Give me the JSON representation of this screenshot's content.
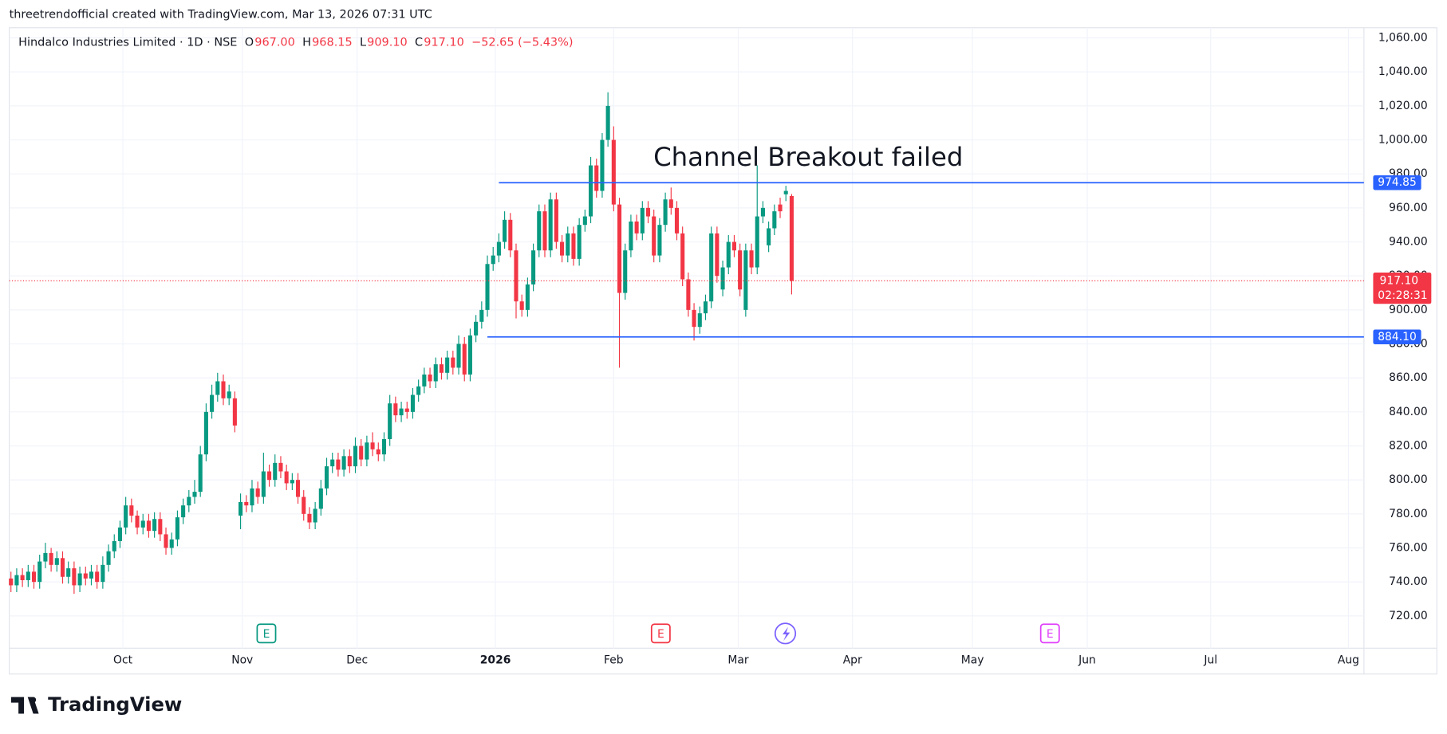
{
  "header": {
    "credit": "threetrendofficial created with TradingView.com, Mar 13, 2026 07:31 UTC"
  },
  "chart_data": {
    "type": "candlestick",
    "legend": {
      "symbol": "Hindalco Industries Limited · 1D · NSE",
      "items": [
        {
          "key": "O",
          "value": "967.00"
        },
        {
          "key": "H",
          "value": "968.15"
        },
        {
          "key": "L",
          "value": "909.10"
        },
        {
          "key": "C",
          "value": "917.10"
        }
      ],
      "change": "−52.65 (−5.43%)"
    },
    "annotation": "Channel Breakout failed",
    "colors": {
      "up": "#089981",
      "down": "#f23645",
      "level": "#2962ff",
      "last": "#f23645"
    },
    "grid": true,
    "candles": {
      "open": [
        742,
        738,
        744,
        741,
        746,
        740,
        752,
        757,
        750,
        754,
        743,
        748,
        738,
        745,
        742,
        746,
        740,
        750,
        758,
        764,
        772,
        785,
        779,
        772,
        776,
        770,
        777,
        768,
        760,
        765,
        778,
        785,
        790,
        793,
        815,
        840,
        850,
        858,
        848,
        848,
        779,
        787,
        785,
        795,
        790,
        805,
        800,
        810,
        805,
        798,
        800,
        790,
        780,
        775,
        783,
        795,
        808,
        812,
        806,
        814,
        808,
        820,
        812,
        822,
        818,
        815,
        824,
        845,
        838,
        842,
        840,
        850,
        855,
        862,
        858,
        868,
        863,
        872,
        866,
        880,
        862,
        885,
        893,
        900,
        927,
        932,
        940,
        953,
        935,
        905,
        900,
        915,
        935,
        958,
        935,
        965,
        940,
        932,
        945,
        930,
        950,
        955,
        985,
        970,
        1000,
        1000,
        962,
        910,
        935,
        952,
        945,
        960,
        955,
        932,
        950,
        965,
        960,
        945,
        918,
        900,
        890,
        898,
        905,
        945,
        912,
        925,
        940,
        935,
        900,
        935,
        925,
        955,
        938,
        948,
        962,
        968,
        967
      ],
      "high": [
        746,
        748,
        748,
        750,
        750,
        756,
        763,
        760,
        758,
        758,
        752,
        752,
        749,
        749,
        750,
        750,
        755,
        762,
        768,
        776,
        790,
        789,
        782,
        780,
        780,
        781,
        781,
        772,
        769,
        782,
        789,
        794,
        800,
        820,
        845,
        856,
        863,
        862,
        856,
        852,
        792,
        791,
        800,
        799,
        816,
        809,
        815,
        814,
        809,
        804,
        804,
        794,
        784,
        787,
        800,
        813,
        816,
        816,
        818,
        818,
        825,
        824,
        826,
        828,
        822,
        828,
        850,
        849,
        846,
        846,
        854,
        859,
        866,
        866,
        872,
        872,
        876,
        876,
        885,
        884,
        889,
        897,
        905,
        932,
        937,
        945,
        958,
        957,
        939,
        909,
        919,
        939,
        962,
        962,
        969,
        969,
        944,
        949,
        949,
        954,
        959,
        990,
        989,
        1004,
        1028,
        1008,
        966,
        939,
        956,
        956,
        964,
        964,
        959,
        954,
        969,
        972,
        964,
        949,
        922,
        904,
        902,
        909,
        949,
        949,
        929,
        944,
        944,
        939,
        939,
        939,
        985,
        964,
        952,
        962,
        966,
        973,
        968.15
      ],
      "low": [
        734,
        734,
        737,
        737,
        736,
        736,
        748,
        746,
        746,
        739,
        739,
        733,
        734,
        738,
        738,
        736,
        736,
        746,
        754,
        760,
        768,
        775,
        768,
        768,
        766,
        766,
        764,
        756,
        756,
        761,
        774,
        781,
        786,
        790,
        811,
        836,
        846,
        844,
        844,
        828,
        771,
        781,
        781,
        786,
        786,
        796,
        796,
        801,
        794,
        794,
        786,
        776,
        771,
        771,
        779,
        791,
        804,
        802,
        802,
        804,
        804,
        808,
        808,
        814,
        811,
        811,
        820,
        834,
        834,
        836,
        836,
        846,
        851,
        854,
        854,
        859,
        859,
        862,
        862,
        858,
        858,
        881,
        889,
        896,
        923,
        928,
        936,
        931,
        895,
        896,
        896,
        911,
        931,
        931,
        931,
        936,
        928,
        928,
        926,
        926,
        946,
        951,
        966,
        966,
        996,
        958,
        866,
        906,
        931,
        941,
        941,
        951,
        928,
        928,
        946,
        956,
        941,
        914,
        896,
        882,
        886,
        894,
        901,
        916,
        908,
        921,
        931,
        908,
        896,
        921,
        921,
        951,
        934,
        944,
        954,
        964,
        909.1
      ],
      "close": [
        738,
        744,
        741,
        746,
        740,
        752,
        757,
        750,
        754,
        743,
        748,
        738,
        745,
        742,
        746,
        740,
        750,
        758,
        764,
        772,
        785,
        779,
        772,
        776,
        770,
        777,
        768,
        760,
        765,
        778,
        785,
        790,
        793,
        815,
        840,
        850,
        858,
        848,
        852,
        832,
        787,
        785,
        795,
        790,
        805,
        800,
        810,
        805,
        798,
        800,
        790,
        780,
        775,
        783,
        795,
        808,
        812,
        806,
        814,
        808,
        820,
        812,
        822,
        818,
        815,
        824,
        845,
        838,
        842,
        840,
        850,
        855,
        862,
        858,
        868,
        863,
        872,
        866,
        880,
        862,
        885,
        893,
        900,
        927,
        932,
        940,
        953,
        935,
        905,
        900,
        915,
        935,
        958,
        935,
        965,
        940,
        932,
        945,
        930,
        950,
        955,
        985,
        970,
        1000,
        1020,
        962,
        910,
        935,
        952,
        945,
        960,
        955,
        932,
        950,
        965,
        960,
        945,
        918,
        900,
        890,
        898,
        905,
        945,
        920,
        925,
        940,
        935,
        912,
        935,
        925,
        955,
        960,
        948,
        958,
        958,
        970,
        917.1
      ]
    },
    "xlim": [
      -0.3,
      235.7
    ],
    "xticks": [
      {
        "value": 19.5,
        "label": "Oct"
      },
      {
        "value": 40.3,
        "label": "Nov"
      },
      {
        "value": 60.3,
        "label": "Dec"
      },
      {
        "value": 84.4,
        "label": "2026"
      },
      {
        "value": 105,
        "label": "Feb"
      },
      {
        "value": 126.7,
        "label": "Mar"
      },
      {
        "value": 146.6,
        "label": "Apr"
      },
      {
        "value": 167.5,
        "label": "May"
      },
      {
        "value": 187.5,
        "label": "Jun"
      },
      {
        "value": 209,
        "label": "Jul"
      },
      {
        "value": 233,
        "label": "Aug"
      }
    ],
    "ylim": [
      701,
      1066
    ],
    "yticks": [
      {
        "value": 720,
        "label": "720.00"
      },
      {
        "value": 740,
        "label": "740.00"
      },
      {
        "value": 760,
        "label": "760.00"
      },
      {
        "value": 780,
        "label": "780.00"
      },
      {
        "value": 800,
        "label": "800.00"
      },
      {
        "value": 820,
        "label": "820.00"
      },
      {
        "value": 840,
        "label": "840.00"
      },
      {
        "value": 860,
        "label": "860.00"
      },
      {
        "value": 880,
        "label": "880.00"
      },
      {
        "value": 900,
        "label": "900.00"
      },
      {
        "value": 920,
        "label": "920.00"
      },
      {
        "value": 940,
        "label": "940.00"
      },
      {
        "value": 960,
        "label": "960.00"
      },
      {
        "value": 980,
        "label": "980.00"
      },
      {
        "value": 1000,
        "label": "1,000.00"
      },
      {
        "value": 1020,
        "label": "1,020.00"
      },
      {
        "value": 1040,
        "label": "1,040.00"
      },
      {
        "value": 1060,
        "label": "1,060.00"
      }
    ],
    "levels": [
      {
        "value": 974.85,
        "label": "974.85",
        "from": 85
      },
      {
        "value": 884.1,
        "label": "884.10",
        "from": 83
      }
    ],
    "last": {
      "value": 917.1,
      "label": "917.10",
      "countdown": "02:28:31"
    },
    "events": [
      {
        "label": "E",
        "at": 44.5,
        "color": "#089981"
      },
      {
        "label": "E",
        "at": 113.2,
        "color": "#f23645"
      },
      {
        "at": 134.9,
        "color": "#7b61ff"
      },
      {
        "label": "E",
        "at": 181,
        "color": "#e040fb"
      }
    ]
  },
  "footer": {
    "brand": "TradingView"
  }
}
